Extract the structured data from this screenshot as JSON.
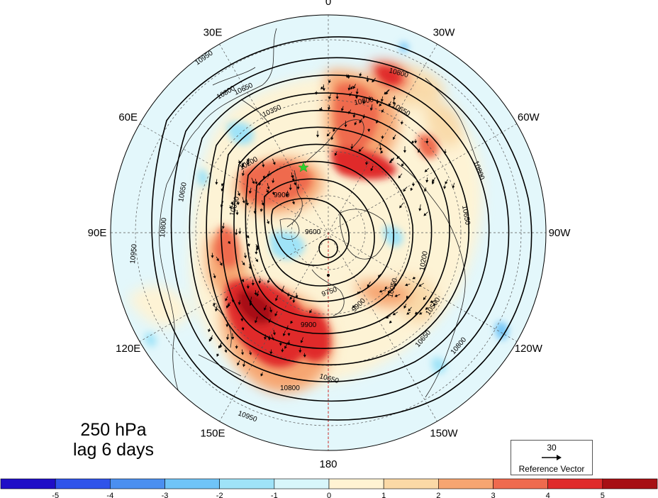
{
  "title": {
    "level": "250 hPa",
    "lag": "lag 6 days"
  },
  "longitude_labels": [
    {
      "text": "0",
      "lon": 0
    },
    {
      "text": "30W",
      "lon": -30
    },
    {
      "text": "60W",
      "lon": -60
    },
    {
      "text": "90W",
      "lon": -90
    },
    {
      "text": "120W",
      "lon": -120
    },
    {
      "text": "150W",
      "lon": -150
    },
    {
      "text": "180",
      "lon": 180
    },
    {
      "text": "150E",
      "lon": 150
    },
    {
      "text": "120E",
      "lon": 120
    },
    {
      "text": "90E",
      "lon": 90
    },
    {
      "text": "60E",
      "lon": 60
    },
    {
      "text": "30E",
      "lon": 30
    }
  ],
  "map": {
    "projection": "north polar stereographic",
    "parallels_deg_N": [
      20,
      40,
      60,
      80
    ],
    "meridian_step_deg": 30,
    "ocean_fill": "#e3f7fb",
    "land_fill": "#e6f7fa"
  },
  "contours": {
    "quantity": "250 hPa geopotential height (m)",
    "labels": [
      "10950",
      "10800",
      "10650",
      "10500",
      "10350",
      "10200",
      "10050",
      "9900",
      "9750",
      "9600"
    ]
  },
  "colorbar": {
    "ticks": [
      "-5",
      "-4",
      "-3",
      "-2",
      "-1",
      "0",
      "1",
      "2",
      "3",
      "4",
      "5"
    ],
    "colors": [
      "#1f0ec7",
      "#2f53ea",
      "#4b8ff0",
      "#6fc4f7",
      "#9fe3f8",
      "#d8f6fa",
      "#fff3d3",
      "#fbd9a6",
      "#f6a571",
      "#ef6a4e",
      "#e02b2b",
      "#a70f14"
    ]
  },
  "reference_vector": {
    "magnitude": "30",
    "label": "Reference Vector"
  }
}
